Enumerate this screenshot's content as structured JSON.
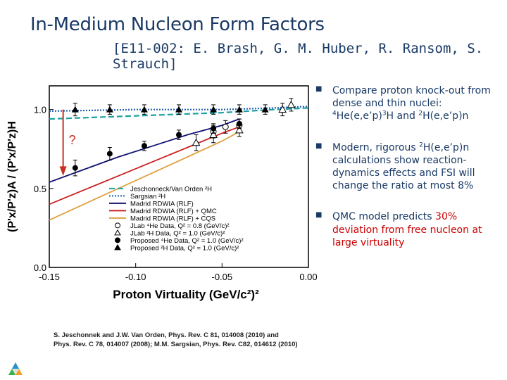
{
  "slide": {
    "title": "In-Medium Nucleon Form Factors",
    "subtitle": "[E11-002: E. Brash, G. M. Huber, R. Ransom, S. Strauch]"
  },
  "bullets": [
    {
      "id": "b1",
      "prefix": "Compare proton knock-out from dense and thin nuclei: ",
      "rest": "He(e,e’p)",
      "rest2": "H and ",
      "rest3": "H(e,e’p)n",
      "sup1": "4",
      "sup2": "3",
      "sup3": "2"
    },
    {
      "id": "b2",
      "a": "Modern, rigorous ",
      "sup": "2",
      "b": "H(e,e’p)n calculations show reaction-dynamics effects and FSI will change the ratio at most 8%"
    },
    {
      "id": "b3",
      "a": "QMC model predicts ",
      "hl1": "30%",
      "b": " ",
      "hl2": "deviation from free nucleon at large virtuality"
    }
  ],
  "references": {
    "line1": "S. Jeschonnek and J.W.  Van Orden, Phys. Rev. C 81, 014008 (2010) and",
    "line2": "Phys. Rev. C 78, 014007 (2008); M.M. Sargsian, Phys. Rev. C82, 014612 (2010)"
  },
  "chart_data": {
    "type": "line",
    "xlabel": "Proton Virtuality (GeV/c²)²",
    "ylabel": "(P'x/P'z)A / (P'x/P'z)H",
    "xlim": [
      -0.15,
      0.0
    ],
    "ylim": [
      0.0,
      1.15
    ],
    "x_ticks": [
      "-0.15",
      "-0.10",
      "-0.05",
      "0.00"
    ],
    "y_ticks": [
      "0.0",
      "0.5",
      "1.0"
    ],
    "annotation": "?",
    "legend_position": "bottom-center",
    "series": [
      {
        "name": "Jeschonneck/Van Orden ²H",
        "style": "dashed",
        "color": "#1aa0a0",
        "x": [
          -0.15,
          -0.1,
          -0.05,
          -0.02,
          0.0
        ],
        "y": [
          0.94,
          0.96,
          0.98,
          1.0,
          1.01
        ]
      },
      {
        "name": "Sargsian ²H",
        "style": "dotted",
        "color": "#2060b0",
        "x": [
          -0.15,
          -0.1,
          -0.05,
          -0.02,
          0.0
        ],
        "y": [
          0.99,
          1.0,
          1.0,
          1.01,
          1.02
        ]
      },
      {
        "name": "Madrid RDWIA (RLF)",
        "style": "solid",
        "color": "#101070",
        "x": [
          -0.15,
          -0.13,
          -0.11,
          -0.09,
          -0.07,
          -0.05,
          -0.04
        ],
        "y": [
          0.54,
          0.62,
          0.7,
          0.77,
          0.84,
          0.9,
          0.94
        ]
      },
      {
        "name": "Madrid RDWIA (RLF) + QMC",
        "style": "solid",
        "color": "#cc2020",
        "x": [
          -0.15,
          -0.13,
          -0.11,
          -0.09,
          -0.07,
          -0.05,
          -0.04
        ],
        "y": [
          0.4,
          0.49,
          0.58,
          0.67,
          0.76,
          0.85,
          0.89
        ]
      },
      {
        "name": "Madrid RDWIA (RLF) + CQS",
        "style": "solid",
        "color": "#e0a040",
        "x": [
          -0.15,
          -0.13,
          -0.11,
          -0.09,
          -0.07,
          -0.05,
          -0.04
        ],
        "y": [
          0.3,
          0.4,
          0.5,
          0.6,
          0.7,
          0.8,
          0.86
        ]
      },
      {
        "name": "JLab ⁴He Data, Q² = 0.8 (GeV/c)²",
        "style": "open-circle",
        "x": [
          -0.055,
          -0.048,
          -0.04
        ],
        "y": [
          0.86,
          0.89,
          0.9
        ],
        "err": [
          0.04,
          0.04,
          0.04
        ]
      },
      {
        "name": "JLab ²H Data, Q² = 1.0 (GeV/c)²",
        "style": "open-triangle",
        "x": [
          -0.065,
          -0.055,
          -0.04,
          -0.015,
          -0.01
        ],
        "y": [
          0.79,
          0.84,
          0.87,
          1.0,
          1.03
        ],
        "err": [
          0.05,
          0.05,
          0.04,
          0.04,
          0.04
        ]
      },
      {
        "name": "Proposed ⁴He Data, Q² = 1.0 (GeV/c)²",
        "style": "filled-circle",
        "x": [
          -0.135,
          -0.115,
          -0.095,
          -0.075,
          -0.055,
          -0.04
        ],
        "y": [
          0.63,
          0.72,
          0.77,
          0.84,
          0.88,
          0.91
        ],
        "err": [
          0.05,
          0.04,
          0.03,
          0.03,
          0.03,
          0.03
        ]
      },
      {
        "name": "Proposed ²H Data, Q² = 1.0 (GeV/c)²",
        "style": "filled-triangle",
        "x": [
          -0.135,
          -0.115,
          -0.095,
          -0.075,
          -0.055,
          -0.04,
          -0.025
        ],
        "y": [
          1.0,
          1.0,
          1.0,
          1.0,
          1.0,
          1.0,
          1.0
        ],
        "err": [
          0.04,
          0.03,
          0.03,
          0.03,
          0.03,
          0.03,
          0.03
        ]
      }
    ]
  }
}
